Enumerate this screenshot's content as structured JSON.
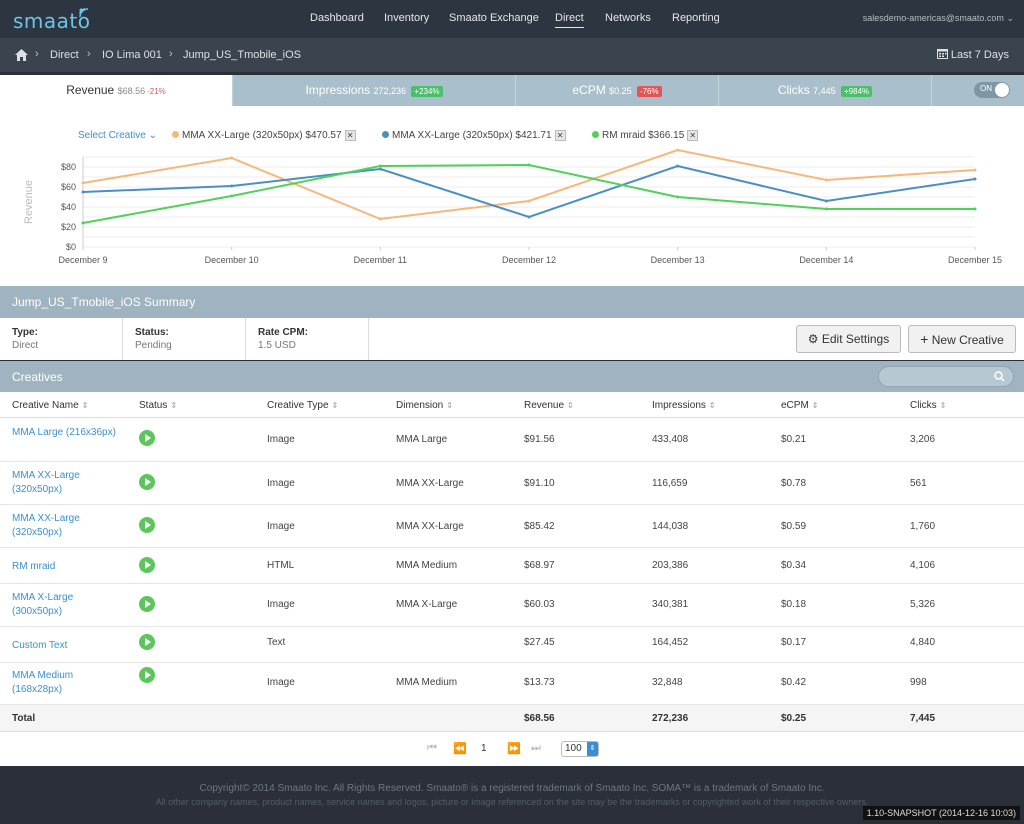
{
  "app": {
    "logo": "smaato"
  },
  "nav": {
    "items": [
      "Dashboard",
      "Inventory",
      "Smaato Exchange",
      "Direct",
      "Networks",
      "Reporting"
    ],
    "active": "Direct",
    "user": "salesdemo-americas@smaato.com"
  },
  "breadcrumb": {
    "items": [
      "Direct",
      "IO Lima 001",
      "Jump_US_Tmobile_iOS"
    ],
    "date_range": "Last 7 Days"
  },
  "tabs": {
    "revenue": {
      "label": "Revenue",
      "value": "$68.56",
      "change": "-21%"
    },
    "impressions": {
      "label": "Impressions",
      "value": "272,236",
      "change": "+234%"
    },
    "ecpm": {
      "label": "eCPM",
      "value": "$0.25",
      "change": "-76%"
    },
    "clicks": {
      "label": "Clicks",
      "value": "7,445",
      "change": "+984%"
    },
    "toggle": "ON"
  },
  "chart_legend": {
    "select_label": "Select Creative",
    "items": [
      {
        "label": "MMA XX-Large (320x50px) $470.57",
        "color": "#f5b87a"
      },
      {
        "label": "MMA XX-Large (320x50px) $421.71",
        "color": "#4a8fc4"
      },
      {
        "label": "RM mraid $366.15",
        "color": "#4fd15a"
      }
    ],
    "remove_glyph": "✕"
  },
  "chart_data": {
    "type": "line",
    "ylabel": "Revenue",
    "ylim": [
      0,
      90
    ],
    "yticks": [
      "$0",
      "$20",
      "$40",
      "$60",
      "$80"
    ],
    "x": [
      "December 9",
      "December 10",
      "December 11",
      "December 12",
      "December 13",
      "December 14",
      "December 15"
    ],
    "series": [
      {
        "name": "MMA XX-Large (320x50px) $470.57",
        "color": "#f5b87a",
        "values": [
          64,
          89,
          28,
          46,
          97,
          67,
          77
        ]
      },
      {
        "name": "MMA XX-Large (320x50px) $421.71",
        "color": "#4a8fc4",
        "values": [
          55,
          61,
          78,
          30,
          81,
          46,
          68
        ]
      },
      {
        "name": "RM mraid $366.15",
        "color": "#4fd15a",
        "values": [
          24,
          51,
          81,
          82,
          50,
          38,
          38
        ]
      }
    ]
  },
  "summary": {
    "title": "Jump_US_Tmobile_iOS Summary",
    "type_label": "Type:",
    "type_value": "Direct",
    "status_label": "Status:",
    "status_value": "Pending",
    "rate_label": "Rate CPM:",
    "rate_value": "1.5 USD",
    "edit_button": "Edit Settings",
    "new_button": "New Creative"
  },
  "creatives": {
    "title": "Creatives",
    "search_placeholder": "",
    "columns": [
      "Creative Name",
      "Status",
      "Creative Type",
      "Dimension",
      "Revenue",
      "Impressions",
      "eCPM",
      "Clicks"
    ],
    "rows": [
      {
        "name": "MMA Large (216x36px)",
        "type": "Image",
        "dimension": "MMA Large",
        "revenue": "$91.56",
        "impressions": "433,408",
        "ecpm": "$0.21",
        "clicks": "3,206"
      },
      {
        "name": "MMA XX-Large (320x50px)",
        "type": "Image",
        "dimension": "MMA XX-Large",
        "revenue": "$91.10",
        "impressions": "116,659",
        "ecpm": "$0.78",
        "clicks": "561"
      },
      {
        "name": "MMA XX-Large (320x50px)",
        "type": "Image",
        "dimension": "MMA XX-Large",
        "revenue": "$85.42",
        "impressions": "144,038",
        "ecpm": "$0.59",
        "clicks": "1,760"
      },
      {
        "name": "RM mraid",
        "type": "HTML",
        "dimension": "MMA Medium",
        "revenue": "$68.97",
        "impressions": "203,386",
        "ecpm": "$0.34",
        "clicks": "4,106"
      },
      {
        "name": "MMA X-Large (300x50px)",
        "type": "Image",
        "dimension": "MMA X-Large",
        "revenue": "$60.03",
        "impressions": "340,381",
        "ecpm": "$0.18",
        "clicks": "5,326"
      },
      {
        "name": "Custom Text",
        "type": "Text",
        "dimension": "",
        "revenue": "$27.45",
        "impressions": "164,452",
        "ecpm": "$0.17",
        "clicks": "4,840"
      },
      {
        "name": "MMA Medium (168x28px)",
        "type": "Image",
        "dimension": "MMA Medium",
        "revenue": "$13.73",
        "impressions": "32,848",
        "ecpm": "$0.42",
        "clicks": "998"
      }
    ],
    "total": {
      "label": "Total",
      "revenue": "$68.56",
      "impressions": "272,236",
      "ecpm": "$0.25",
      "clicks": "7,445"
    }
  },
  "pager": {
    "page": "1",
    "page_size": "100"
  },
  "footer": {
    "line1": "Copyright© 2014 Smaato Inc. All Rights Reserved. Smaato® is a registered trademark of Smaato Inc. SOMA™ is a trademark of Smaato Inc.",
    "line2": "All other company names, product names, service names and logos, picture or image referenced on the site may be the trademarks or copyrighted work of their respective owners.",
    "version": "1.10-SNAPSHOT (2014-12-16 10:03)"
  }
}
